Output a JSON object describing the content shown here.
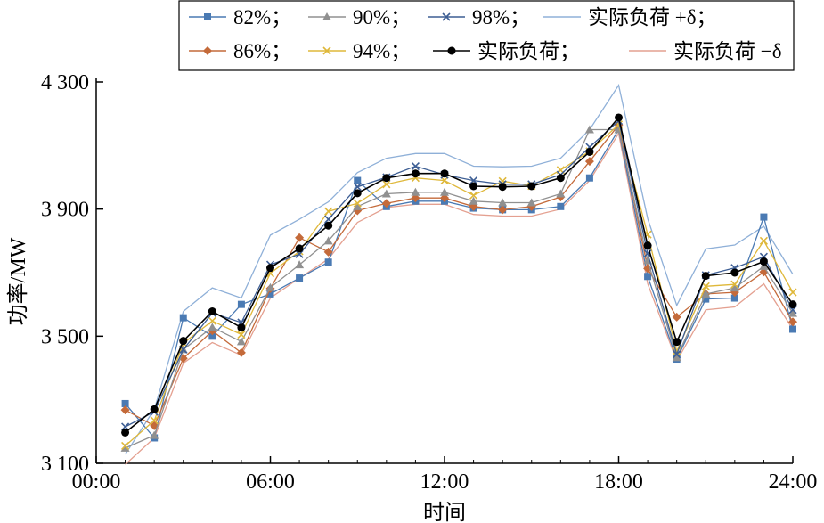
{
  "chart_data": {
    "type": "line",
    "xlabel": "时间",
    "ylabel": "功率/MW",
    "xlim": [
      0,
      24
    ],
    "ylim": [
      3100,
      4300
    ],
    "x_ticks": [
      "00:00",
      "06:00",
      "12:00",
      "18:00",
      "24:00"
    ],
    "y_ticks": [
      "3 100",
      "3 500",
      "3 900",
      "4 300"
    ],
    "grid": false,
    "legend_position": "top",
    "x": [
      1,
      2,
      3,
      4,
      5,
      6,
      7,
      8,
      9,
      10,
      11,
      12,
      13,
      14,
      15,
      16,
      17,
      18,
      19,
      20,
      21,
      22,
      23,
      24
    ],
    "series": [
      {
        "name": "82%；",
        "color": "#4a7ab3",
        "marker": "square",
        "values": [
          3288,
          3180,
          3558,
          3500,
          3600,
          3633,
          3683,
          3733,
          3990,
          3908,
          3925,
          3925,
          3903,
          3898,
          3898,
          3908,
          3998,
          4150,
          3688,
          3428,
          3617,
          3620,
          3875,
          3522
        ]
      },
      {
        "name": "90%；",
        "color": "#909090",
        "marker": "triangle",
        "values": [
          3148,
          3188,
          3458,
          3528,
          3483,
          3653,
          3725,
          3800,
          3908,
          3948,
          3953,
          3953,
          3925,
          3920,
          3920,
          3948,
          4150,
          4150,
          3738,
          3433,
          3633,
          3652,
          3720,
          3572
        ]
      },
      {
        "name": "98%；",
        "color": "#3d5e94",
        "marker": "x",
        "values": [
          3215,
          3262,
          3458,
          3573,
          3543,
          3725,
          3758,
          3868,
          3970,
          4000,
          4035,
          4008,
          3990,
          3978,
          3978,
          4008,
          4095,
          4178,
          3760,
          3443,
          3692,
          3715,
          3750,
          3583
        ]
      },
      {
        "name": "实际负荷 +δ；",
        "color": "#8fb0d8",
        "marker": "none",
        "values": [
          3128,
          3270,
          3578,
          3652,
          3620,
          3818,
          3868,
          3923,
          4015,
          4060,
          4075,
          4075,
          4035,
          4033,
          4035,
          4060,
          4150,
          4290,
          3870,
          3597,
          3775,
          3787,
          3846,
          3695
        ]
      },
      {
        "name": "86%；",
        "color": "#c46a3a",
        "marker": "diamond",
        "values": [
          3268,
          3218,
          3430,
          3517,
          3448,
          3650,
          3810,
          3765,
          3895,
          3918,
          3935,
          3935,
          3908,
          3898,
          3908,
          3938,
          4050,
          4165,
          3713,
          3560,
          3633,
          3638,
          3702,
          3545
        ]
      },
      {
        "name": "94%；",
        "color": "#dfb83a",
        "marker": "x",
        "values": [
          3155,
          3235,
          3478,
          3548,
          3505,
          3698,
          3767,
          3893,
          3918,
          3978,
          3998,
          3990,
          3943,
          3988,
          3973,
          4023,
          4082,
          4166,
          3820,
          3453,
          3657,
          3663,
          3800,
          3638
        ]
      },
      {
        "name": "实际负荷；",
        "color": "#000000",
        "marker": "circle",
        "values": [
          3197,
          3270,
          3485,
          3578,
          3527,
          3715,
          3776,
          3848,
          3950,
          3998,
          4012,
          4012,
          3972,
          3970,
          3972,
          3998,
          4080,
          4188,
          3785,
          3482,
          3690,
          3700,
          3735,
          3600
        ]
      },
      {
        "name": "实际负荷 −δ",
        "color": "#e4a090",
        "marker": "none",
        "values": [
          3096,
          3180,
          3415,
          3480,
          3440,
          3620,
          3683,
          3743,
          3858,
          3905,
          3915,
          3915,
          3883,
          3878,
          3878,
          3900,
          3990,
          4138,
          3665,
          3422,
          3583,
          3592,
          3665,
          3522
        ]
      }
    ]
  }
}
